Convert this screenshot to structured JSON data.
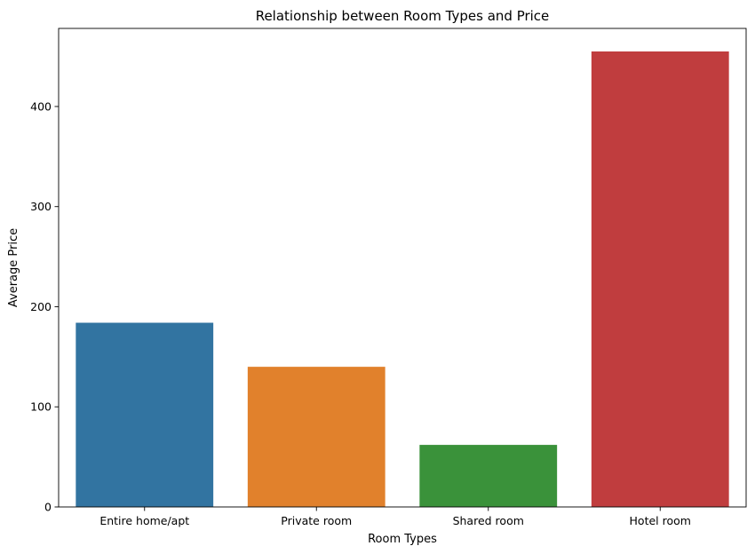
{
  "chart_data": {
    "type": "bar",
    "title": "Relationship between Room Types and Price",
    "xlabel": "Room Types",
    "ylabel": "Average Price",
    "categories": [
      "Entire home/apt",
      "Private room",
      "Shared room",
      "Hotel room"
    ],
    "values": [
      184,
      140,
      62,
      455
    ],
    "colors": [
      "#3274a1",
      "#e1812c",
      "#3a923a",
      "#c03d3e"
    ],
    "ylim": [
      0,
      478
    ],
    "yticks": [
      0,
      100,
      200,
      300,
      400
    ],
    "grid": false,
    "legend": false
  }
}
